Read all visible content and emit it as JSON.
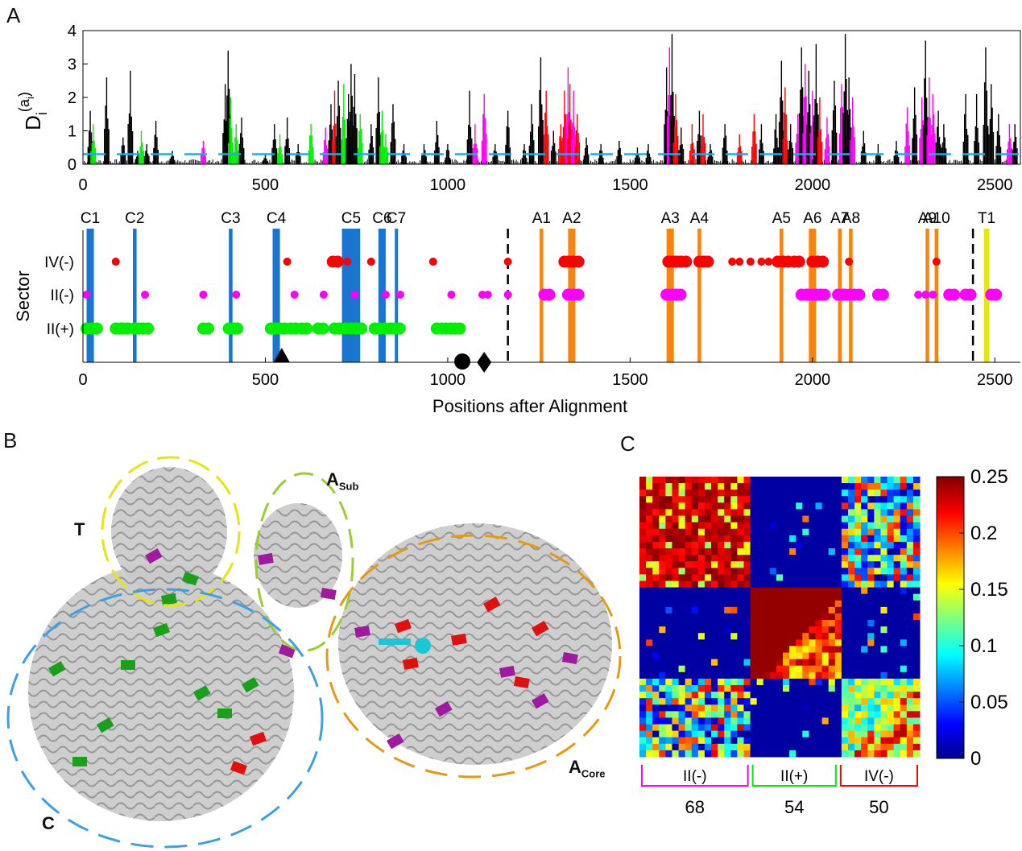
{
  "panels": {
    "a": "A",
    "b": "B",
    "c": "C"
  },
  "chart_data": [
    {
      "type": "bar",
      "panel": "A-top",
      "ylabel_main": "D",
      "ylabel_sub": "i",
      "ylabel_sup": "(a",
      "ylabel_sup_sub": "i",
      "ylabel_sup_close": ")",
      "xlim": [
        0,
        2570
      ],
      "ylim": [
        0,
        4
      ],
      "yticks": [
        "0",
        "1",
        "2",
        "3",
        "4"
      ],
      "xticks": [
        "0",
        "500",
        "1000",
        "1500",
        "2000",
        "2500"
      ],
      "threshold": 0.3,
      "colors": {
        "other": "#000000",
        "IV(-)": "#ff0000",
        "II(-)": "#ff00ff",
        "II(+)": "#00ee00",
        "threshold": "#29a8e0"
      },
      "peaks": [
        [
          20,
          1.6,
          "other"
        ],
        [
          28,
          1.2,
          "II(+)"
        ],
        [
          65,
          2.6,
          "other"
        ],
        [
          110,
          0.8,
          "other"
        ],
        [
          130,
          2.8,
          "other"
        ],
        [
          150,
          0.4,
          "other"
        ],
        [
          160,
          1.0,
          "II(+)"
        ],
        [
          175,
          0.6,
          "other"
        ],
        [
          200,
          1.3,
          "other"
        ],
        [
          245,
          0.4,
          "other"
        ],
        [
          330,
          0.7,
          "II(-)"
        ],
        [
          390,
          2.4,
          "other"
        ],
        [
          398,
          3.4,
          "other"
        ],
        [
          405,
          2.0,
          "II(+)"
        ],
        [
          420,
          1.2,
          "II(+)"
        ],
        [
          435,
          1.4,
          "other"
        ],
        [
          500,
          0.3,
          "other"
        ],
        [
          525,
          1.2,
          "other"
        ],
        [
          540,
          0.9,
          "II(+)"
        ],
        [
          560,
          1.4,
          "other"
        ],
        [
          590,
          0.6,
          "other"
        ],
        [
          625,
          1.2,
          "II(+)"
        ],
        [
          665,
          1.1,
          "II(-)"
        ],
        [
          680,
          1.8,
          "other"
        ],
        [
          690,
          2.2,
          "IV(-)"
        ],
        [
          700,
          2.5,
          "other"
        ],
        [
          715,
          2.4,
          "II(+)"
        ],
        [
          728,
          2.1,
          "other"
        ],
        [
          735,
          3.0,
          "other"
        ],
        [
          745,
          2.7,
          "other"
        ],
        [
          760,
          1.5,
          "II(+)"
        ],
        [
          790,
          1.2,
          "other"
        ],
        [
          810,
          2.6,
          "other"
        ],
        [
          820,
          1.6,
          "II(+)"
        ],
        [
          830,
          0.9,
          "II(+)"
        ],
        [
          850,
          1.8,
          "other"
        ],
        [
          880,
          0.6,
          "other"
        ],
        [
          935,
          0.6,
          "other"
        ],
        [
          970,
          1.3,
          "other"
        ],
        [
          1000,
          0.6,
          "other"
        ],
        [
          1060,
          2.2,
          "other"
        ],
        [
          1075,
          1.2,
          "II(-)"
        ],
        [
          1100,
          2.1,
          "II(-)"
        ],
        [
          1130,
          0.6,
          "other"
        ],
        [
          1165,
          1.6,
          "other"
        ],
        [
          1210,
          0.6,
          "other"
        ],
        [
          1230,
          1.8,
          "other"
        ],
        [
          1255,
          3.2,
          "other"
        ],
        [
          1270,
          2.2,
          "IV(-)"
        ],
        [
          1290,
          1.0,
          "other"
        ],
        [
          1310,
          1.2,
          "IV(-)"
        ],
        [
          1320,
          2.2,
          "IV(-)"
        ],
        [
          1330,
          2.9,
          "II(-)"
        ],
        [
          1335,
          2.4,
          "IV(-)"
        ],
        [
          1345,
          2.2,
          "II(-)"
        ],
        [
          1355,
          1.5,
          "IV(-)"
        ],
        [
          1380,
          0.8,
          "other"
        ],
        [
          1420,
          0.6,
          "other"
        ],
        [
          1470,
          0.7,
          "other"
        ],
        [
          1520,
          0.5,
          "other"
        ],
        [
          1550,
          0.6,
          "other"
        ],
        [
          1600,
          2.9,
          "other"
        ],
        [
          1608,
          3.5,
          "II(-)"
        ],
        [
          1615,
          3.9,
          "other"
        ],
        [
          1625,
          2.1,
          "IV(-)"
        ],
        [
          1640,
          1.1,
          "other"
        ],
        [
          1670,
          1.2,
          "IV(-)"
        ],
        [
          1690,
          1.6,
          "other"
        ],
        [
          1700,
          1.5,
          "IV(-)"
        ],
        [
          1720,
          0.6,
          "other"
        ],
        [
          1760,
          1.2,
          "other"
        ],
        [
          1800,
          0.9,
          "IV(-)"
        ],
        [
          1840,
          1.5,
          "IV(-)"
        ],
        [
          1860,
          1.2,
          "other"
        ],
        [
          1900,
          1.5,
          "other"
        ],
        [
          1915,
          3.1,
          "other"
        ],
        [
          1925,
          2.3,
          "IV(-)"
        ],
        [
          1940,
          1.2,
          "other"
        ],
        [
          1960,
          1.5,
          "II(-)"
        ],
        [
          1970,
          3.5,
          "other"
        ],
        [
          1980,
          3.0,
          "II(-)"
        ],
        [
          1990,
          2.8,
          "other"
        ],
        [
          2000,
          2.2,
          "II(-)"
        ],
        [
          2010,
          3.6,
          "other"
        ],
        [
          2020,
          2.0,
          "IV(-)"
        ],
        [
          2040,
          1.4,
          "II(-)"
        ],
        [
          2060,
          2.5,
          "other"
        ],
        [
          2080,
          2.4,
          "II(-)"
        ],
        [
          2090,
          3.9,
          "other"
        ],
        [
          2100,
          2.6,
          "other"
        ],
        [
          2110,
          2.0,
          "II(-)"
        ],
        [
          2140,
          1.0,
          "other"
        ],
        [
          2180,
          0.6,
          "other"
        ],
        [
          2230,
          0.7,
          "other"
        ],
        [
          2260,
          1.7,
          "II(-)"
        ],
        [
          2280,
          2.3,
          "other"
        ],
        [
          2300,
          2.0,
          "II(-)"
        ],
        [
          2310,
          3.7,
          "other"
        ],
        [
          2320,
          2.6,
          "II(-)"
        ],
        [
          2330,
          2.1,
          "II(-)"
        ],
        [
          2345,
          1.6,
          "other"
        ],
        [
          2360,
          1.2,
          "other"
        ],
        [
          2420,
          2.1,
          "other"
        ],
        [
          2450,
          2.1,
          "other"
        ],
        [
          2475,
          3.5,
          "other"
        ],
        [
          2490,
          2.4,
          "other"
        ],
        [
          2510,
          1.5,
          "other"
        ],
        [
          2540,
          1.2,
          "II(-)"
        ],
        [
          2555,
          1.2,
          "other"
        ]
      ]
    },
    {
      "type": "scatter",
      "panel": "A-bottom",
      "ylabel": "Sector",
      "xlabel": "Positions after Alignment",
      "xlim": [
        0,
        2570
      ],
      "xticks": [
        "0",
        "500",
        "1000",
        "1500",
        "2000",
        "2500"
      ],
      "categories": [
        "IV(-)",
        "II(-)",
        "II(+)"
      ],
      "colors": {
        "IV(-)": "#ff0000",
        "II(-)": "#ff00ff",
        "II(+)": "#00ee00",
        "C": "#1a75d1",
        "A": "#f7840f",
        "T": "#e5e512"
      },
      "c_domains": [
        {
          "name": "C1",
          "x": [
            10,
            30
          ]
        },
        {
          "name": "C2",
          "x": [
            137,
            147
          ]
        },
        {
          "name": "C3",
          "x": [
            400,
            410
          ]
        },
        {
          "name": "C4",
          "x": [
            520,
            540
          ]
        },
        {
          "name": "C5",
          "x": [
            710,
            760
          ]
        },
        {
          "name": "C6",
          "x": [
            810,
            830
          ]
        },
        {
          "name": "C7",
          "x": [
            855,
            863
          ]
        }
      ],
      "a_domains": [
        {
          "name": "A1",
          "x": [
            1252,
            1262
          ]
        },
        {
          "name": "A2",
          "x": [
            1330,
            1350
          ]
        },
        {
          "name": "A3",
          "x": [
            1600,
            1620
          ]
        },
        {
          "name": "A4",
          "x": [
            1685,
            1695
          ]
        },
        {
          "name": "A5",
          "x": [
            1910,
            1920
          ]
        },
        {
          "name": "A6",
          "x": [
            1990,
            2010
          ]
        },
        {
          "name": "A7",
          "x": [
            2070,
            2080
          ]
        },
        {
          "name": "A8",
          "x": [
            2100,
            2110
          ]
        },
        {
          "name": "A9",
          "x": [
            2310,
            2320
          ]
        },
        {
          "name": "A10",
          "x": [
            2335,
            2345
          ]
        }
      ],
      "t_domains": [
        {
          "name": "T1",
          "x": [
            2470,
            2485
          ]
        }
      ],
      "dashed_lines": [
        1165,
        2440
      ],
      "markers": [
        {
          "shape": "triangle",
          "x": 545
        },
        {
          "shape": "circle",
          "x": 1040
        },
        {
          "shape": "diamond",
          "x": 1100
        }
      ],
      "points": {
        "IV(-)": [
          [
            90,
            1
          ],
          [
            560,
            1
          ],
          [
            685,
            2
          ],
          [
            725,
            1
          ],
          [
            790,
            1
          ],
          [
            960,
            1
          ],
          [
            1165,
            1
          ],
          [
            1320,
            2
          ],
          [
            1330,
            2
          ],
          [
            1345,
            2
          ],
          [
            1605,
            2
          ],
          [
            1615,
            2
          ],
          [
            1625,
            2
          ],
          [
            1640,
            2
          ],
          [
            1690,
            2
          ],
          [
            1700,
            2
          ],
          [
            1780,
            1
          ],
          [
            1800,
            1
          ],
          [
            1830,
            1
          ],
          [
            1860,
            1
          ],
          [
            1880,
            1
          ],
          [
            1905,
            2
          ],
          [
            1920,
            2
          ],
          [
            1950,
            2
          ],
          [
            2000,
            2
          ],
          [
            2015,
            2
          ],
          [
            2100,
            1
          ],
          [
            2340,
            1
          ]
        ],
        "II(-)": [
          [
            10,
            1
          ],
          [
            170,
            1
          ],
          [
            330,
            1
          ],
          [
            420,
            1
          ],
          [
            580,
            1
          ],
          [
            660,
            1
          ],
          [
            745,
            1
          ],
          [
            830,
            1
          ],
          [
            870,
            1
          ],
          [
            1010,
            1
          ],
          [
            1095,
            1
          ],
          [
            1110,
            1
          ],
          [
            1165,
            1
          ],
          [
            1265,
            2
          ],
          [
            1330,
            2
          ],
          [
            1345,
            2
          ],
          [
            1600,
            2
          ],
          [
            1615,
            2
          ],
          [
            1625,
            2
          ],
          [
            1970,
            2
          ],
          [
            1990,
            2
          ],
          [
            2010,
            2
          ],
          [
            2020,
            2
          ],
          [
            2070,
            2
          ],
          [
            2090,
            2
          ],
          [
            2115,
            2
          ],
          [
            2180,
            2
          ],
          [
            2290,
            1
          ],
          [
            2310,
            1
          ],
          [
            2330,
            1
          ],
          [
            2375,
            2
          ],
          [
            2420,
            2
          ],
          [
            2490,
            2
          ]
        ],
        "II(+)": [
          [
            10,
            2
          ],
          [
            25,
            2
          ],
          [
            90,
            2
          ],
          [
            110,
            2
          ],
          [
            140,
            2
          ],
          [
            165,
            2
          ],
          [
            330,
            2
          ],
          [
            400,
            2
          ],
          [
            410,
            2
          ],
          [
            515,
            2
          ],
          [
            525,
            2
          ],
          [
            540,
            2
          ],
          [
            570,
            2
          ],
          [
            600,
            2
          ],
          [
            645,
            2
          ],
          [
            690,
            2
          ],
          [
            720,
            2
          ],
          [
            735,
            2
          ],
          [
            750,
            2
          ],
          [
            800,
            2
          ],
          [
            815,
            2
          ],
          [
            830,
            2
          ],
          [
            855,
            2
          ],
          [
            970,
            2
          ],
          [
            995,
            2
          ],
          [
            1020,
            2
          ]
        ]
      }
    },
    {
      "type": "heatmap",
      "panel": "C",
      "colorbar_ticks": [
        "0.25",
        "0.2",
        "0.15",
        "0.1",
        "0.05",
        "0"
      ],
      "colorbar_range": [
        0,
        0.25
      ],
      "groups": [
        {
          "label": "II(-)",
          "count": "68",
          "color": "#ff00ff"
        },
        {
          "label": "II(+)",
          "count": "54",
          "color": "#00ee00"
        },
        {
          "label": "IV(-)",
          "count": "50",
          "color": "#ff0000"
        }
      ]
    }
  ],
  "protein": {
    "regions": [
      {
        "label": "T",
        "sub": "",
        "color": "#e5e512"
      },
      {
        "label": "A",
        "sub": "Sub",
        "color": "#9acd32"
      },
      {
        "label": "A",
        "sub": "Core",
        "color": "#e59a15"
      },
      {
        "label": "C",
        "sub": "",
        "color": "#3fa0e0"
      }
    ]
  }
}
